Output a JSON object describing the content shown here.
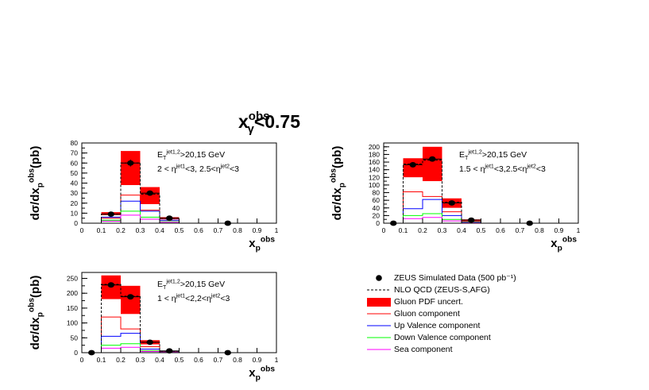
{
  "title": {
    "main": "x",
    "sup": "obs",
    "sub": "γ",
    "cond": "<0.75"
  },
  "colors": {
    "data": "#000000",
    "nlo": "#000000",
    "pdf_band": "#ff0000",
    "gluon": "#ff0000",
    "up_valence": "#0000ff",
    "down_valence": "#00ff00",
    "sea": "#ff00ff"
  },
  "legend": {
    "data_label": "ZEUS Simulated Data (500 pb⁻¹)",
    "nlo_label": "NLO QCD (ZEUS-S,AFG)",
    "band_label": "Gluon PDF uncert.",
    "gluon_label": "Gluon component",
    "up_label": "Up Valence component",
    "down_label": "Down Valence component",
    "sea_label": "Sea component"
  },
  "chart_data": [
    {
      "type": "bar",
      "ylabel": "dσ/dx_p^obs(pb)",
      "xlabel": "x_p^obs",
      "xlim": [
        0,
        1
      ],
      "ylim": [
        0,
        80
      ],
      "xticks": [
        "0",
        "0.1",
        "0.2",
        "0.3",
        "0.4",
        "0.5",
        "0.6",
        "0.7",
        "0.8",
        "0.9",
        "1"
      ],
      "yticks": [
        0,
        10,
        20,
        30,
        40,
        50,
        60,
        70,
        80
      ],
      "annotation": [
        "E_T^jet1,2>20,15 GeV",
        "2 < η^jet1<3, 2.5<η^jet2<3"
      ],
      "bins": [
        [
          0.1,
          0.2
        ],
        [
          0.2,
          0.3
        ],
        [
          0.3,
          0.4
        ],
        [
          0.4,
          0.5
        ]
      ],
      "nlo": [
        9,
        60,
        29,
        5
      ],
      "band_low": [
        8,
        38,
        19,
        4
      ],
      "band_high": [
        11,
        72,
        36,
        6
      ],
      "gluon": [
        5,
        28,
        13,
        3
      ],
      "up_valence": [
        6,
        22,
        12,
        3
      ],
      "down_valence": [
        3,
        12,
        6,
        1.5
      ],
      "sea": [
        2,
        8,
        4,
        1
      ],
      "points": [
        [
          0.15,
          9
        ],
        [
          0.25,
          60
        ],
        [
          0.35,
          30
        ],
        [
          0.45,
          5
        ],
        [
          0.75,
          0
        ]
      ],
      "errors": [
        1.5,
        3.5,
        2.5,
        1,
        0
      ]
    },
    {
      "type": "bar",
      "ylabel": "dσ/dx_p^obs(pb)",
      "xlabel": "x_p^obs",
      "xlim": [
        0,
        1
      ],
      "ylim": [
        0,
        210
      ],
      "xticks": [
        "0",
        "0.1",
        "0.2",
        "0.3",
        "0.4",
        "0.5",
        "0.6",
        "0.7",
        "0.8",
        "0.9",
        "1"
      ],
      "yticks": [
        0,
        20,
        40,
        60,
        80,
        100,
        120,
        140,
        160,
        180,
        200
      ],
      "annotation": [
        "E_T^jet1,2>20,15 GeV",
        "1.5 < η^jet1<3,2.5<η^jet2<3"
      ],
      "bins": [
        [
          0.1,
          0.2
        ],
        [
          0.2,
          0.3
        ],
        [
          0.3,
          0.4
        ],
        [
          0.4,
          0.5
        ]
      ],
      "nlo": [
        155,
        165,
        55,
        8
      ],
      "band_low": [
        120,
        110,
        40,
        6
      ],
      "band_high": [
        170,
        200,
        65,
        10
      ],
      "gluon": [
        82,
        70,
        30,
        5
      ],
      "up_valence": [
        38,
        62,
        20,
        3
      ],
      "down_valence": [
        20,
        25,
        10,
        2
      ],
      "sea": [
        12,
        15,
        6,
        1
      ],
      "points": [
        [
          0.05,
          0
        ],
        [
          0.15,
          153
        ],
        [
          0.25,
          168
        ],
        [
          0.35,
          53
        ],
        [
          0.45,
          8
        ],
        [
          0.75,
          0
        ]
      ],
      "errors": [
        0,
        6,
        6,
        4,
        2,
        0
      ]
    },
    {
      "type": "bar",
      "ylabel": "dσ/dx_p^obs(pb)",
      "xlabel": "x_p^obs",
      "xlim": [
        0,
        1
      ],
      "ylim": [
        0,
        270
      ],
      "xticks": [
        "0",
        "0.1",
        "0.2",
        "0.3",
        "0.4",
        "0.5",
        "0.6",
        "0.7",
        "0.8",
        "0.9",
        "1"
      ],
      "yticks": [
        0,
        50,
        100,
        150,
        200,
        250
      ],
      "annotation": [
        "E_T^jet1,2>20,15 GeV",
        "1 < η^jet1<2,2<η^jet2<3"
      ],
      "bins": [
        [
          0.1,
          0.2
        ],
        [
          0.2,
          0.3
        ],
        [
          0.3,
          0.4
        ],
        [
          0.4,
          0.5
        ]
      ],
      "nlo": [
        230,
        190,
        35,
        5
      ],
      "band_low": [
        180,
        130,
        28,
        4
      ],
      "band_high": [
        260,
        225,
        42,
        6
      ],
      "gluon": [
        120,
        80,
        20,
        3
      ],
      "up_valence": [
        55,
        65,
        12,
        2
      ],
      "down_valence": [
        25,
        30,
        6,
        1
      ],
      "sea": [
        15,
        18,
        4,
        1
      ],
      "points": [
        [
          0.05,
          0
        ],
        [
          0.15,
          228
        ],
        [
          0.25,
          188
        ],
        [
          0.35,
          35
        ],
        [
          0.45,
          6
        ],
        [
          0.75,
          0
        ]
      ],
      "errors": [
        0,
        8,
        8,
        3,
        2,
        0
      ]
    }
  ]
}
